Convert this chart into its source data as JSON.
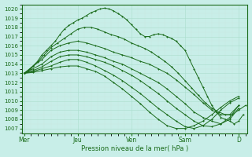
{
  "background_color": "#c8eee8",
  "grid_color": "#ffffff",
  "line_color": "#1a6b1a",
  "title": "Pression niveau de la mer( hPa )",
  "ylim": [
    1006.5,
    1020.5
  ],
  "yticks": [
    1007,
    1008,
    1009,
    1010,
    1011,
    1012,
    1013,
    1014,
    1015,
    1016,
    1017,
    1018,
    1019,
    1020
  ],
  "xtick_labels": [
    "Mer",
    "Jeu",
    "Ven",
    "Sam",
    "D"
  ],
  "xtick_positions": [
    0,
    24,
    48,
    72,
    96
  ],
  "total_hours": 100,
  "lines": [
    {
      "x": [
        0,
        2,
        4,
        6,
        8,
        10,
        12,
        14,
        16,
        18,
        20,
        22,
        24,
        26,
        28,
        30,
        32,
        34,
        36,
        38,
        40,
        42,
        44,
        46,
        48,
        50,
        52,
        54,
        56,
        58,
        60,
        62,
        64,
        66,
        68,
        70,
        72,
        74,
        76,
        78,
        80,
        82,
        84,
        86,
        88,
        90,
        92,
        94,
        96,
        98
      ],
      "y": [
        1013.0,
        1013.3,
        1013.8,
        1014.3,
        1015.0,
        1015.5,
        1016.0,
        1016.5,
        1017.2,
        1017.8,
        1018.2,
        1018.5,
        1018.8,
        1019.0,
        1019.3,
        1019.6,
        1019.8,
        1020.0,
        1020.1,
        1020.0,
        1019.8,
        1019.5,
        1019.2,
        1018.8,
        1018.3,
        1017.8,
        1017.3,
        1017.0,
        1017.0,
        1017.2,
        1017.3,
        1017.2,
        1017.0,
        1016.8,
        1016.5,
        1016.0,
        1015.5,
        1014.5,
        1013.5,
        1012.5,
        1011.5,
        1010.5,
        1009.5,
        1008.8,
        1008.2,
        1008.0,
        1007.8,
        1007.5,
        1007.8,
        1008.5
      ],
      "marker": true
    },
    {
      "x": [
        0,
        3,
        6,
        9,
        12,
        15,
        18,
        21,
        24,
        27,
        30,
        33,
        36,
        39,
        42,
        45,
        48,
        51,
        54,
        57,
        60,
        63,
        66,
        69,
        72,
        75,
        78,
        81,
        84,
        87,
        90,
        93,
        96,
        99
      ],
      "y": [
        1013.0,
        1013.5,
        1014.2,
        1015.0,
        1015.8,
        1016.3,
        1016.8,
        1017.3,
        1017.8,
        1018.0,
        1018.0,
        1017.8,
        1017.5,
        1017.2,
        1017.0,
        1016.7,
        1016.3,
        1016.0,
        1015.7,
        1015.3,
        1014.8,
        1014.3,
        1013.7,
        1013.0,
        1012.2,
        1011.4,
        1010.6,
        1009.8,
        1009.2,
        1008.8,
        1008.5,
        1008.5,
        1009.0,
        1009.5
      ],
      "marker": true
    },
    {
      "x": [
        0,
        4,
        8,
        12,
        16,
        20,
        24,
        28,
        32,
        36,
        40,
        44,
        48,
        52,
        56,
        60,
        64,
        68,
        72,
        76,
        80,
        84,
        88,
        92,
        96
      ],
      "y": [
        1013.0,
        1013.8,
        1014.5,
        1015.5,
        1016.0,
        1016.3,
        1016.5,
        1016.3,
        1016.0,
        1015.7,
        1015.3,
        1015.0,
        1014.7,
        1014.3,
        1014.0,
        1013.5,
        1013.0,
        1012.3,
        1011.5,
        1010.7,
        1009.8,
        1009.0,
        1008.5,
        1008.5,
        1009.5
      ],
      "marker": true
    },
    {
      "x": [
        0,
        4,
        8,
        12,
        16,
        20,
        24,
        28,
        32,
        36,
        40,
        44,
        48,
        52,
        56,
        60,
        64,
        68,
        72,
        76,
        80,
        84,
        88,
        92,
        96
      ],
      "y": [
        1013.0,
        1013.5,
        1014.0,
        1014.8,
        1015.3,
        1015.5,
        1015.5,
        1015.3,
        1015.0,
        1014.7,
        1014.3,
        1014.0,
        1013.5,
        1013.0,
        1012.5,
        1012.0,
        1011.3,
        1010.5,
        1009.7,
        1008.8,
        1008.2,
        1007.8,
        1007.5,
        1008.0,
        1009.2
      ],
      "marker": true
    },
    {
      "x": [
        0,
        4,
        8,
        12,
        16,
        20,
        24,
        28,
        32,
        36,
        40,
        44,
        48,
        52,
        56,
        60,
        64,
        68,
        72,
        76,
        80,
        84,
        88,
        92,
        96
      ],
      "y": [
        1013.0,
        1013.3,
        1013.7,
        1014.3,
        1014.8,
        1015.0,
        1015.0,
        1014.8,
        1014.5,
        1014.2,
        1013.8,
        1013.3,
        1012.8,
        1012.2,
        1011.5,
        1010.8,
        1010.0,
        1009.2,
        1008.5,
        1007.8,
        1007.3,
        1007.2,
        1007.5,
        1008.2,
        1009.5
      ],
      "marker": true
    },
    {
      "x": [
        0,
        4,
        8,
        12,
        16,
        20,
        24,
        28,
        32,
        36,
        40,
        44,
        48,
        52,
        56,
        60,
        64,
        68,
        72,
        76,
        80,
        84,
        88,
        92,
        96
      ],
      "y": [
        1013.0,
        1013.2,
        1013.5,
        1013.8,
        1014.2,
        1014.5,
        1014.5,
        1014.2,
        1013.8,
        1013.3,
        1012.8,
        1012.2,
        1011.5,
        1010.8,
        1010.0,
        1009.2,
        1008.5,
        1007.8,
        1007.2,
        1007.0,
        1007.3,
        1008.0,
        1009.0,
        1009.8,
        1010.3
      ],
      "marker": true
    },
    {
      "x": [
        0,
        4,
        8,
        12,
        16,
        20,
        24,
        28,
        32,
        36,
        40,
        44,
        48,
        52,
        56,
        60,
        64,
        68,
        72,
        76,
        80,
        84,
        88,
        92,
        96
      ],
      "y": [
        1013.0,
        1013.1,
        1013.3,
        1013.5,
        1013.7,
        1013.8,
        1013.8,
        1013.5,
        1013.2,
        1012.7,
        1012.0,
        1011.3,
        1010.5,
        1009.7,
        1008.8,
        1008.0,
        1007.3,
        1007.0,
        1007.0,
        1007.3,
        1007.8,
        1008.5,
        1009.3,
        1010.0,
        1010.5
      ],
      "marker": true
    }
  ]
}
